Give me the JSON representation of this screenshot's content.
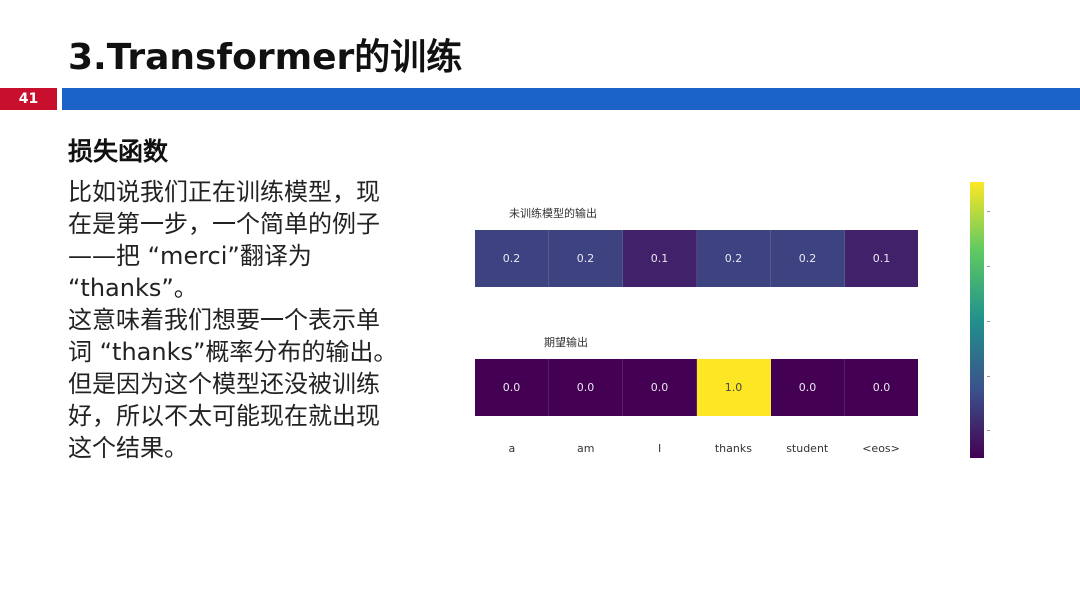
{
  "slide": {
    "title": "3.Transformer的训练",
    "page_number": "41",
    "heading": "损失函数",
    "paragraphs": [
      "比如说我们正在训练模型，现在是第一步，一个简单的例子——把 “merci”翻译为 “thanks”。",
      "这意味着我们想要一个表示单词 “thanks”概率分布的输出。但是因为这个模型还没被训练好，所以不太可能现在就出现这个结果。"
    ]
  },
  "figure": {
    "untrained_title": "未训练模型的输出",
    "expected_title": "期望输出"
  },
  "chart_data": {
    "type": "heatmap",
    "categories": [
      "a",
      "am",
      "I",
      "thanks",
      "student",
      "<eos>"
    ],
    "series": [
      {
        "name": "未训练模型的输出",
        "values": [
          0.2,
          0.2,
          0.1,
          0.2,
          0.2,
          0.1
        ]
      },
      {
        "name": "期望输出",
        "values": [
          0.0,
          0.0,
          0.0,
          1.0,
          0.0,
          0.0
        ]
      }
    ],
    "value_labels": [
      [
        "0.2",
        "0.2",
        "0.1",
        "0.2",
        "0.2",
        "0.1"
      ],
      [
        "0.0",
        "0.0",
        "0.0",
        "1.0",
        "0.0",
        "0.0"
      ]
    ],
    "colormap": [
      "#440154",
      "#3b528b",
      "#21918c",
      "#5ec962",
      "#fde725"
    ],
    "zlim": [
      0,
      1
    ]
  }
}
